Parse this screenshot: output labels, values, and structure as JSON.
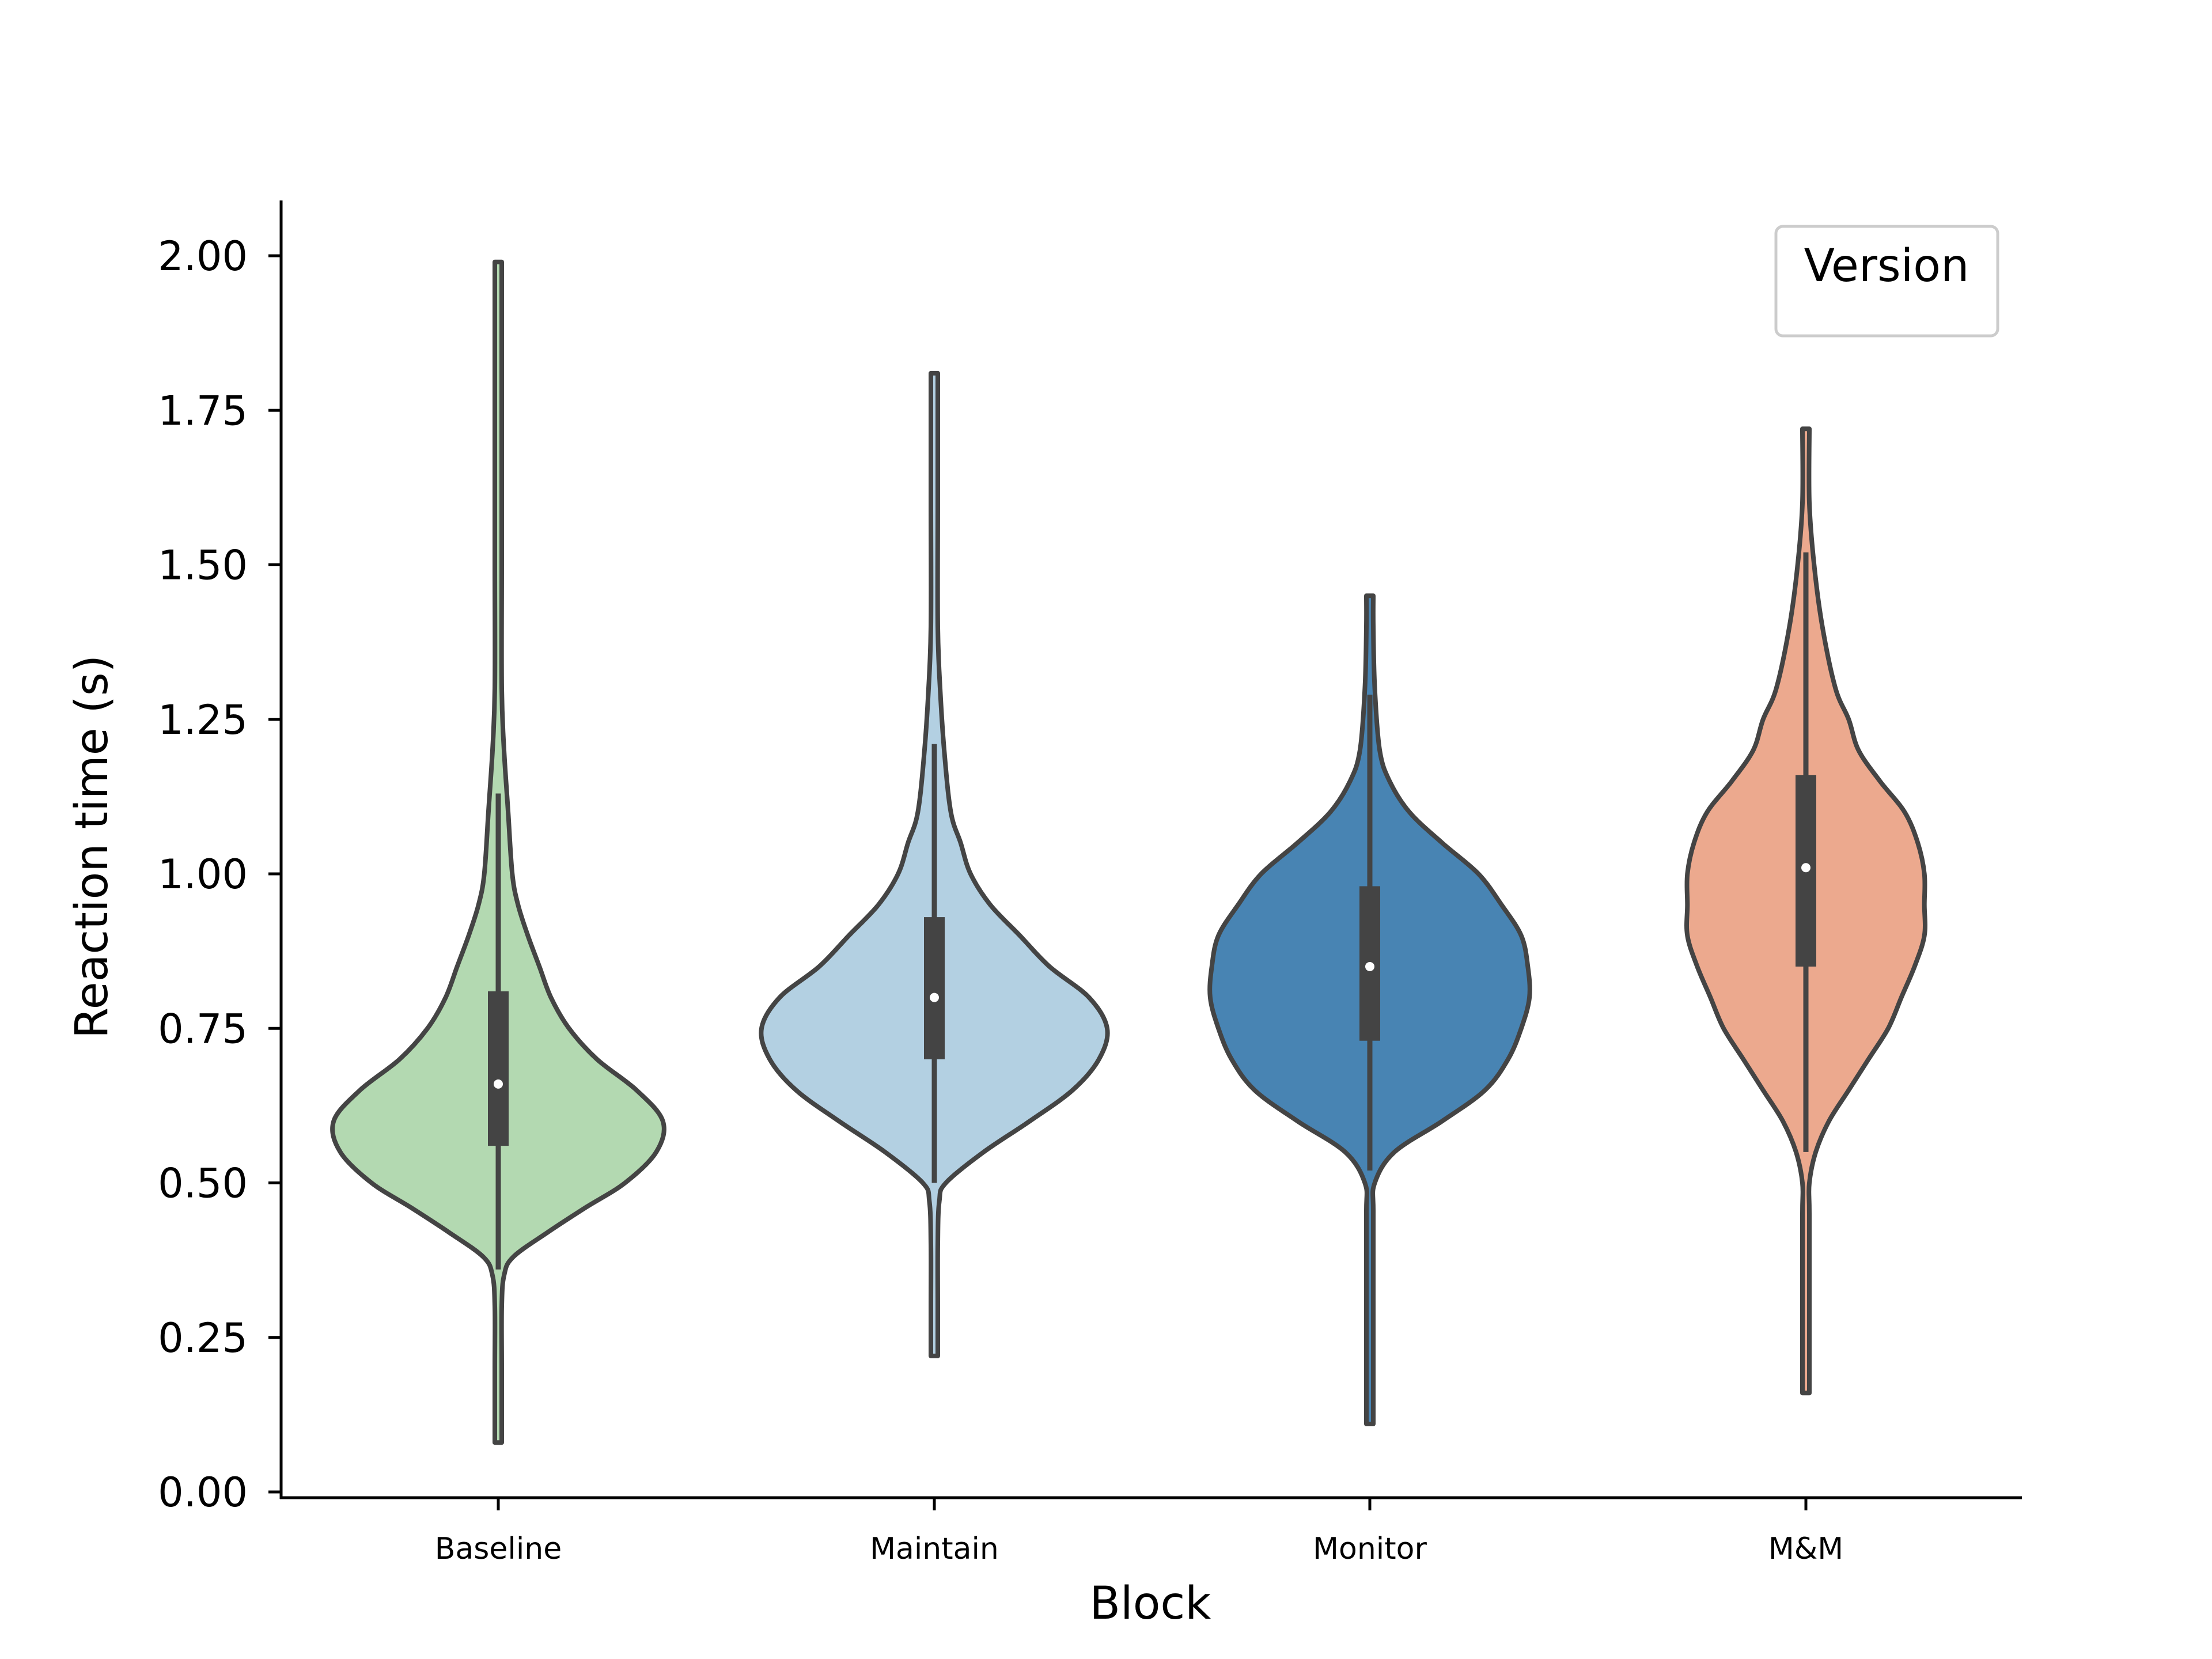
{
  "chart_data": {
    "type": "violin",
    "xlabel": "Block",
    "ylabel": "Reaction time (s)",
    "categories": [
      "Baseline",
      "Maintain",
      "Monitor",
      "M&M"
    ],
    "ylim": [
      0.0,
      2.08
    ],
    "yticks": [
      "0.00",
      "0.25",
      "0.50",
      "0.75",
      "1.00",
      "1.25",
      "1.50",
      "1.75",
      "2.00"
    ],
    "grid": false,
    "legend": {
      "title": "Version",
      "placement": "top-right",
      "entries": []
    },
    "colors": {
      "Baseline": "#b3d9b1",
      "Maintain": "#b3d0e2",
      "Monitor": "#4884b3",
      "M&M": "#eca98e",
      "outline": "#444444"
    },
    "series": [
      {
        "category": "Baseline",
        "min": 0.08,
        "q1": 0.56,
        "median": 0.66,
        "q3": 0.81,
        "max": 1.99,
        "whisker_low": 0.36,
        "whisker_high": 1.13,
        "density": [
          [
            0.08,
            0.004
          ],
          [
            0.2,
            0.006
          ],
          [
            0.3,
            0.01
          ],
          [
            0.35,
            0.035
          ],
          [
            0.38,
            0.09
          ],
          [
            0.42,
            0.3
          ],
          [
            0.46,
            0.53
          ],
          [
            0.5,
            0.77
          ],
          [
            0.55,
            0.96
          ],
          [
            0.6,
            1.0
          ],
          [
            0.65,
            0.84
          ],
          [
            0.7,
            0.6
          ],
          [
            0.75,
            0.43
          ],
          [
            0.8,
            0.32
          ],
          [
            0.85,
            0.25
          ],
          [
            0.9,
            0.18
          ],
          [
            0.95,
            0.12
          ],
          [
            1.0,
            0.085
          ],
          [
            1.1,
            0.06
          ],
          [
            1.2,
            0.035
          ],
          [
            1.3,
            0.02
          ],
          [
            1.5,
            0.01
          ],
          [
            1.7,
            0.006
          ],
          [
            1.99,
            0.004
          ]
        ]
      },
      {
        "category": "Maintain",
        "min": 0.22,
        "q1": 0.7,
        "median": 0.8,
        "q3": 0.93,
        "max": 1.81,
        "whisker_low": 0.5,
        "whisker_high": 1.21,
        "density": [
          [
            0.22,
            0.006
          ],
          [
            0.3,
            0.008
          ],
          [
            0.4,
            0.012
          ],
          [
            0.47,
            0.03
          ],
          [
            0.5,
            0.07
          ],
          [
            0.55,
            0.3
          ],
          [
            0.6,
            0.58
          ],
          [
            0.65,
            0.84
          ],
          [
            0.7,
            1.0
          ],
          [
            0.75,
            1.05
          ],
          [
            0.8,
            0.94
          ],
          [
            0.85,
            0.7
          ],
          [
            0.9,
            0.52
          ],
          [
            0.95,
            0.34
          ],
          [
            1.0,
            0.22
          ],
          [
            1.05,
            0.16
          ],
          [
            1.1,
            0.1
          ],
          [
            1.2,
            0.06
          ],
          [
            1.3,
            0.035
          ],
          [
            1.4,
            0.015
          ],
          [
            1.6,
            0.01
          ],
          [
            1.81,
            0.006
          ]
        ]
      },
      {
        "category": "Monitor",
        "min": 0.11,
        "q1": 0.73,
        "median": 0.85,
        "q3": 0.98,
        "max": 1.45,
        "whisker_low": 0.52,
        "whisker_high": 1.29,
        "density": [
          [
            0.11,
            0.006
          ],
          [
            0.3,
            0.008
          ],
          [
            0.45,
            0.012
          ],
          [
            0.5,
            0.03
          ],
          [
            0.55,
            0.15
          ],
          [
            0.6,
            0.44
          ],
          [
            0.65,
            0.7
          ],
          [
            0.7,
            0.84
          ],
          [
            0.75,
            0.92
          ],
          [
            0.8,
            0.97
          ],
          [
            0.85,
            0.96
          ],
          [
            0.9,
            0.92
          ],
          [
            0.95,
            0.8
          ],
          [
            1.0,
            0.66
          ],
          [
            1.05,
            0.44
          ],
          [
            1.1,
            0.24
          ],
          [
            1.15,
            0.12
          ],
          [
            1.2,
            0.06
          ],
          [
            1.3,
            0.03
          ],
          [
            1.4,
            0.012
          ],
          [
            1.45,
            0.006
          ]
        ]
      },
      {
        "category": "M&M",
        "min": 0.16,
        "q1": 0.85,
        "median": 1.01,
        "q3": 1.16,
        "max": 1.72,
        "whisker_low": 0.55,
        "whisker_high": 1.52,
        "density": [
          [
            0.16,
            0.005
          ],
          [
            0.3,
            0.008
          ],
          [
            0.45,
            0.015
          ],
          [
            0.5,
            0.02
          ],
          [
            0.55,
            0.06
          ],
          [
            0.6,
            0.14
          ],
          [
            0.65,
            0.26
          ],
          [
            0.7,
            0.38
          ],
          [
            0.75,
            0.5
          ],
          [
            0.8,
            0.58
          ],
          [
            0.85,
            0.66
          ],
          [
            0.9,
            0.72
          ],
          [
            0.95,
            0.72
          ],
          [
            1.0,
            0.72
          ],
          [
            1.05,
            0.68
          ],
          [
            1.1,
            0.6
          ],
          [
            1.15,
            0.45
          ],
          [
            1.2,
            0.32
          ],
          [
            1.25,
            0.26
          ],
          [
            1.3,
            0.18
          ],
          [
            1.4,
            0.1
          ],
          [
            1.5,
            0.05
          ],
          [
            1.6,
            0.02
          ],
          [
            1.72,
            0.006
          ]
        ]
      }
    ]
  }
}
